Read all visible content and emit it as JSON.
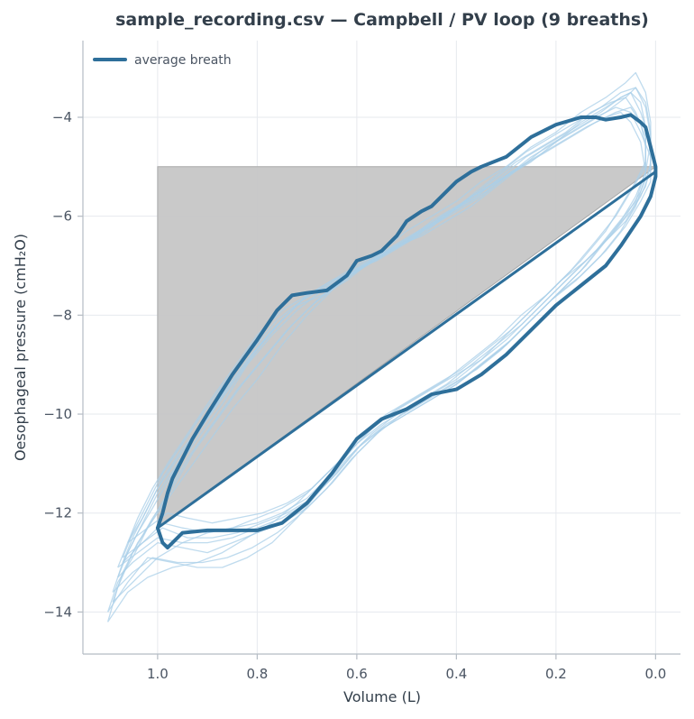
{
  "chart_data": {
    "type": "line",
    "title": "sample_recording.csv — Campbell / PV loop (9 breaths)",
    "xlabel": "Volume (L)",
    "ylabel": "Oesophageal pressure (cmH₂O)",
    "x_axis_reversed": true,
    "xlim": [
      1.15,
      -0.05
    ],
    "ylim": [
      -14.85,
      -2.45
    ],
    "x_ticks": [
      1.0,
      0.8,
      0.6,
      0.4,
      0.2,
      0.0
    ],
    "x_tick_labels": [
      "1.0",
      "0.8",
      "0.6",
      "0.4",
      "0.2",
      "0.0"
    ],
    "y_ticks": [
      -14,
      -12,
      -10,
      -8,
      -6,
      -4
    ],
    "y_tick_labels": [
      "−14",
      "−12",
      "−10",
      "−8",
      "−6",
      "−4"
    ],
    "grid": true,
    "legend": {
      "placement": "top-left",
      "entries": [
        "average breath"
      ]
    },
    "colors": {
      "average": "#2e6f9a",
      "breaths": "#a9cfe8",
      "work_area": "#c6c6c6"
    },
    "work_area_polygon": [
      [
        1.0,
        -5.0
      ],
      [
        0.0,
        -5.0
      ],
      [
        1.0,
        -12.3
      ]
    ],
    "chord": {
      "x": [
        1.0,
        0.0
      ],
      "y": [
        -12.3,
        -5.1
      ]
    },
    "series": [
      {
        "name": "average breath",
        "role": "average",
        "x": [
          1.0,
          0.99,
          0.98,
          0.97,
          0.95,
          0.93,
          0.9,
          0.85,
          0.8,
          0.76,
          0.73,
          0.7,
          0.66,
          0.62,
          0.6,
          0.57,
          0.55,
          0.52,
          0.5,
          0.47,
          0.45,
          0.42,
          0.4,
          0.37,
          0.35,
          0.3,
          0.25,
          0.2,
          0.15,
          0.12,
          0.1,
          0.07,
          0.05,
          0.03,
          0.02,
          0.01,
          0.0,
          0.0,
          0.01,
          0.03,
          0.07,
          0.1,
          0.15,
          0.2,
          0.25,
          0.3,
          0.35,
          0.4,
          0.45,
          0.5,
          0.55,
          0.6,
          0.65,
          0.7,
          0.75,
          0.8,
          0.85,
          0.9,
          0.95,
          0.98,
          0.99,
          1.0
        ],
        "y": [
          -12.3,
          -12.0,
          -11.6,
          -11.3,
          -10.9,
          -10.5,
          -10.0,
          -9.2,
          -8.5,
          -7.9,
          -7.6,
          -7.55,
          -7.5,
          -7.2,
          -6.9,
          -6.8,
          -6.7,
          -6.4,
          -6.1,
          -5.9,
          -5.8,
          -5.5,
          -5.3,
          -5.1,
          -5.0,
          -4.8,
          -4.4,
          -4.15,
          -4.0,
          -4.0,
          -4.05,
          -4.0,
          -3.95,
          -4.1,
          -4.2,
          -4.6,
          -5.0,
          -5.2,
          -5.6,
          -6.0,
          -6.6,
          -7.0,
          -7.4,
          -7.8,
          -8.3,
          -8.8,
          -9.2,
          -9.5,
          -9.6,
          -9.9,
          -10.1,
          -10.5,
          -11.2,
          -11.8,
          -12.2,
          -12.35,
          -12.35,
          -12.35,
          -12.4,
          -12.7,
          -12.6,
          -12.3
        ]
      },
      {
        "name": "",
        "role": "breath",
        "x": [
          1.09,
          1.07,
          1.04,
          1.0,
          0.95,
          0.9,
          0.85,
          0.8,
          0.75,
          0.7,
          0.65,
          0.6,
          0.55,
          0.5,
          0.45,
          0.4,
          0.35,
          0.3,
          0.25,
          0.2,
          0.15,
          0.1,
          0.07,
          0.05,
          0.03,
          0.02,
          0.02,
          0.04,
          0.07,
          0.1,
          0.15,
          0.2,
          0.25,
          0.3,
          0.35,
          0.4,
          0.45,
          0.5,
          0.55,
          0.6,
          0.65,
          0.7,
          0.75,
          0.8,
          0.85,
          0.9,
          0.95,
          1.0,
          1.05,
          1.09
        ],
        "y": [
          -13.8,
          -13.2,
          -12.6,
          -12.0,
          -11.3,
          -10.6,
          -9.9,
          -9.3,
          -8.6,
          -8.0,
          -7.5,
          -7.1,
          -6.8,
          -6.5,
          -6.1,
          -5.8,
          -5.5,
          -5.2,
          -4.8,
          -4.5,
          -4.1,
          -3.8,
          -3.6,
          -3.5,
          -3.7,
          -4.2,
          -4.9,
          -5.3,
          -5.8,
          -6.3,
          -6.9,
          -7.4,
          -7.9,
          -8.4,
          -8.9,
          -9.2,
          -9.5,
          -9.8,
          -10.1,
          -10.6,
          -11.1,
          -11.6,
          -11.9,
          -12.1,
          -12.3,
          -12.4,
          -12.6,
          -12.9,
          -13.4,
          -13.8
        ]
      },
      {
        "name": "",
        "role": "breath",
        "x": [
          1.08,
          1.06,
          1.03,
          1.0,
          0.96,
          0.92,
          0.87,
          0.82,
          0.77,
          0.72,
          0.67,
          0.62,
          0.57,
          0.52,
          0.47,
          0.42,
          0.37,
          0.32,
          0.27,
          0.22,
          0.17,
          0.12,
          0.08,
          0.05,
          0.03,
          0.01,
          0.01,
          0.03,
          0.06,
          0.1,
          0.15,
          0.2,
          0.25,
          0.3,
          0.35,
          0.4,
          0.45,
          0.5,
          0.55,
          0.6,
          0.65,
          0.7,
          0.75,
          0.8,
          0.85,
          0.9,
          0.95,
          1.0,
          1.05,
          1.08
        ],
        "y": [
          -13.3,
          -12.8,
          -12.2,
          -11.6,
          -11.0,
          -10.4,
          -9.6,
          -8.9,
          -8.3,
          -7.8,
          -7.6,
          -7.3,
          -6.9,
          -6.6,
          -6.3,
          -6.0,
          -5.6,
          -5.3,
          -5.0,
          -4.6,
          -4.3,
          -4.0,
          -3.8,
          -3.9,
          -4.3,
          -4.8,
          -5.3,
          -5.7,
          -6.2,
          -6.7,
          -7.2,
          -7.6,
          -8.1,
          -8.6,
          -9.0,
          -9.4,
          -9.7,
          -10.0,
          -10.3,
          -10.8,
          -11.4,
          -11.9,
          -12.2,
          -12.4,
          -12.6,
          -12.8,
          -12.7,
          -12.6,
          -13.0,
          -13.3
        ]
      },
      {
        "name": "",
        "role": "breath",
        "x": [
          1.1,
          1.08,
          1.05,
          1.01,
          0.97,
          0.93,
          0.88,
          0.83,
          0.78,
          0.73,
          0.68,
          0.63,
          0.58,
          0.53,
          0.48,
          0.43,
          0.38,
          0.33,
          0.28,
          0.23,
          0.18,
          0.13,
          0.09,
          0.06,
          0.04,
          0.02,
          0.02,
          0.05,
          0.08,
          0.12,
          0.17,
          0.22,
          0.27,
          0.32,
          0.37,
          0.42,
          0.47,
          0.52,
          0.57,
          0.62,
          0.67,
          0.72,
          0.77,
          0.82,
          0.87,
          0.92,
          0.97,
          1.02,
          1.06,
          1.1
        ],
        "y": [
          -14.2,
          -13.5,
          -12.8,
          -12.1,
          -11.5,
          -10.8,
          -10.1,
          -9.4,
          -8.8,
          -8.2,
          -7.7,
          -7.3,
          -7.0,
          -6.7,
          -6.4,
          -6.0,
          -5.7,
          -5.3,
          -4.9,
          -4.6,
          -4.3,
          -3.9,
          -3.7,
          -3.6,
          -3.9,
          -4.4,
          -5.0,
          -5.5,
          -6.0,
          -6.5,
          -7.1,
          -7.6,
          -8.0,
          -8.5,
          -8.9,
          -9.3,
          -9.6,
          -9.9,
          -10.3,
          -10.8,
          -11.3,
          -11.8,
          -12.2,
          -12.5,
          -12.8,
          -13.0,
          -13.1,
          -13.3,
          -13.6,
          -14.2
        ]
      },
      {
        "name": "",
        "role": "breath",
        "x": [
          1.07,
          1.05,
          1.02,
          0.99,
          0.95,
          0.91,
          0.86,
          0.81,
          0.76,
          0.71,
          0.66,
          0.61,
          0.56,
          0.51,
          0.46,
          0.41,
          0.36,
          0.31,
          0.26,
          0.21,
          0.16,
          0.11,
          0.07,
          0.04,
          0.02,
          0.01,
          0.01,
          0.03,
          0.06,
          0.1,
          0.14,
          0.19,
          0.24,
          0.29,
          0.34,
          0.39,
          0.44,
          0.49,
          0.54,
          0.59,
          0.64,
          0.69,
          0.74,
          0.79,
          0.84,
          0.89,
          0.94,
          0.99,
          1.03,
          1.07
        ],
        "y": [
          -12.9,
          -12.4,
          -11.8,
          -11.2,
          -10.6,
          -10.0,
          -9.3,
          -8.7,
          -8.1,
          -7.7,
          -7.4,
          -7.1,
          -6.8,
          -6.5,
          -6.2,
          -5.9,
          -5.5,
          -5.1,
          -4.7,
          -4.4,
          -4.1,
          -3.8,
          -3.5,
          -3.4,
          -3.8,
          -4.4,
          -5.1,
          -5.6,
          -6.1,
          -6.5,
          -7.0,
          -7.5,
          -8.0,
          -8.5,
          -8.9,
          -9.3,
          -9.6,
          -9.9,
          -10.2,
          -10.6,
          -11.2,
          -11.7,
          -12.0,
          -12.2,
          -12.4,
          -12.5,
          -12.5,
          -12.3,
          -12.6,
          -12.9
        ]
      },
      {
        "name": "",
        "role": "breath",
        "x": [
          1.09,
          1.07,
          1.04,
          1.01,
          0.97,
          0.92,
          0.87,
          0.82,
          0.77,
          0.72,
          0.67,
          0.62,
          0.57,
          0.52,
          0.47,
          0.42,
          0.37,
          0.32,
          0.27,
          0.22,
          0.17,
          0.12,
          0.08,
          0.05,
          0.03,
          0.02,
          0.02,
          0.04,
          0.07,
          0.11,
          0.16,
          0.21,
          0.26,
          0.31,
          0.36,
          0.41,
          0.46,
          0.51,
          0.56,
          0.61,
          0.66,
          0.71,
          0.76,
          0.81,
          0.86,
          0.91,
          0.96,
          1.01,
          1.05,
          1.09
        ],
        "y": [
          -13.6,
          -13.0,
          -12.4,
          -11.9,
          -11.2,
          -10.5,
          -9.8,
          -9.0,
          -8.4,
          -7.9,
          -7.5,
          -7.2,
          -6.9,
          -6.6,
          -6.4,
          -6.1,
          -5.8,
          -5.4,
          -5.0,
          -4.7,
          -4.4,
          -4.1,
          -3.9,
          -3.8,
          -4.1,
          -4.6,
          -5.2,
          -5.8,
          -6.3,
          -6.8,
          -7.3,
          -7.7,
          -8.2,
          -8.7,
          -9.1,
          -9.4,
          -9.7,
          -10.0,
          -10.4,
          -10.9,
          -11.5,
          -12.0,
          -12.4,
          -12.7,
          -12.9,
          -13.0,
          -13.0,
          -12.9,
          -13.2,
          -13.6
        ]
      },
      {
        "name": "",
        "role": "breath",
        "x": [
          1.06,
          1.04,
          1.01,
          0.98,
          0.94,
          0.9,
          0.85,
          0.8,
          0.75,
          0.7,
          0.65,
          0.6,
          0.55,
          0.5,
          0.45,
          0.4,
          0.35,
          0.3,
          0.25,
          0.2,
          0.15,
          0.1,
          0.06,
          0.04,
          0.02,
          0.01,
          0.01,
          0.02,
          0.05,
          0.09,
          0.14,
          0.19,
          0.24,
          0.29,
          0.34,
          0.39,
          0.44,
          0.49,
          0.54,
          0.59,
          0.64,
          0.69,
          0.74,
          0.79,
          0.84,
          0.89,
          0.94,
          0.98,
          1.02,
          1.06
        ],
        "y": [
          -12.6,
          -12.1,
          -11.5,
          -11.0,
          -10.4,
          -9.8,
          -9.1,
          -8.4,
          -7.9,
          -7.6,
          -7.3,
          -7.0,
          -6.7,
          -6.3,
          -6.0,
          -5.7,
          -5.3,
          -5.0,
          -4.6,
          -4.3,
          -3.9,
          -3.6,
          -3.3,
          -3.1,
          -3.5,
          -4.1,
          -4.9,
          -5.4,
          -5.9,
          -6.4,
          -6.9,
          -7.3,
          -7.8,
          -8.3,
          -8.7,
          -9.1,
          -9.4,
          -9.7,
          -10.0,
          -10.4,
          -11.0,
          -11.5,
          -11.8,
          -12.0,
          -12.1,
          -12.2,
          -12.1,
          -12.0,
          -12.3,
          -12.6
        ]
      },
      {
        "name": "",
        "role": "breath",
        "x": [
          1.08,
          1.06,
          1.03,
          1.0,
          0.96,
          0.91,
          0.86,
          0.81,
          0.76,
          0.71,
          0.66,
          0.61,
          0.56,
          0.51,
          0.46,
          0.41,
          0.36,
          0.31,
          0.26,
          0.21,
          0.16,
          0.11,
          0.07,
          0.05,
          0.03,
          0.01,
          0.02,
          0.04,
          0.07,
          0.11,
          0.15,
          0.2,
          0.25,
          0.3,
          0.35,
          0.4,
          0.45,
          0.5,
          0.55,
          0.6,
          0.65,
          0.7,
          0.75,
          0.8,
          0.85,
          0.9,
          0.95,
          1.0,
          1.04,
          1.08
        ],
        "y": [
          -13.1,
          -12.6,
          -12.1,
          -11.5,
          -10.9,
          -10.2,
          -9.5,
          -8.8,
          -8.2,
          -7.7,
          -7.4,
          -7.1,
          -6.9,
          -6.6,
          -6.3,
          -5.9,
          -5.6,
          -5.2,
          -4.8,
          -4.5,
          -4.2,
          -3.9,
          -3.6,
          -3.5,
          -3.9,
          -4.5,
          -5.1,
          -5.6,
          -6.1,
          -6.6,
          -7.1,
          -7.6,
          -8.1,
          -8.6,
          -9.0,
          -9.4,
          -9.7,
          -10.0,
          -10.3,
          -10.7,
          -11.3,
          -11.8,
          -12.1,
          -12.3,
          -12.5,
          -12.6,
          -12.6,
          -12.5,
          -12.8,
          -13.1
        ]
      },
      {
        "name": "",
        "role": "breath",
        "x": [
          1.1,
          1.08,
          1.05,
          1.02,
          0.98,
          0.94,
          0.89,
          0.84,
          0.79,
          0.74,
          0.69,
          0.64,
          0.59,
          0.54,
          0.49,
          0.44,
          0.39,
          0.34,
          0.29,
          0.24,
          0.19,
          0.14,
          0.1,
          0.07,
          0.05,
          0.03,
          0.02,
          0.04,
          0.08,
          0.12,
          0.17,
          0.22,
          0.27,
          0.32,
          0.37,
          0.42,
          0.47,
          0.52,
          0.57,
          0.62,
          0.67,
          0.72,
          0.77,
          0.82,
          0.87,
          0.92,
          0.97,
          1.02,
          1.06,
          1.1
        ],
        "y": [
          -14.0,
          -13.4,
          -12.9,
          -12.3,
          -11.6,
          -10.9,
          -10.2,
          -9.5,
          -8.9,
          -8.3,
          -7.8,
          -7.4,
          -7.0,
          -6.7,
          -6.4,
          -6.1,
          -5.8,
          -5.5,
          -5.1,
          -4.8,
          -4.5,
          -4.2,
          -4.0,
          -3.9,
          -4.1,
          -4.5,
          -5.1,
          -5.7,
          -6.2,
          -6.7,
          -7.2,
          -7.7,
          -8.2,
          -8.6,
          -9.0,
          -9.4,
          -9.7,
          -10.0,
          -10.4,
          -10.9,
          -11.5,
          -12.1,
          -12.6,
          -12.9,
          -13.1,
          -13.1,
          -13.0,
          -12.9,
          -13.4,
          -14.0
        ]
      },
      {
        "name": "",
        "role": "breath",
        "x": [
          1.07,
          1.05,
          1.02,
          0.99,
          0.95,
          0.9,
          0.85,
          0.8,
          0.75,
          0.7,
          0.65,
          0.6,
          0.55,
          0.5,
          0.45,
          0.4,
          0.35,
          0.3,
          0.25,
          0.2,
          0.15,
          0.1,
          0.06,
          0.04,
          0.02,
          0.01,
          0.01,
          0.03,
          0.06,
          0.1,
          0.15,
          0.2,
          0.25,
          0.3,
          0.35,
          0.4,
          0.45,
          0.5,
          0.55,
          0.6,
          0.65,
          0.7,
          0.75,
          0.8,
          0.85,
          0.9,
          0.95,
          0.99,
          1.03,
          1.07
        ],
        "y": [
          -13.0,
          -12.5,
          -11.9,
          -11.3,
          -10.7,
          -10.1,
          -9.4,
          -8.7,
          -8.1,
          -7.6,
          -7.3,
          -7.1,
          -6.8,
          -6.5,
          -6.2,
          -5.9,
          -5.6,
          -5.2,
          -4.9,
          -4.5,
          -4.2,
          -3.9,
          -3.6,
          -3.4,
          -3.7,
          -4.3,
          -5.0,
          -5.5,
          -6.0,
          -6.5,
          -7.0,
          -7.5,
          -8.0,
          -8.5,
          -8.9,
          -9.3,
          -9.6,
          -9.9,
          -10.2,
          -10.6,
          -11.2,
          -11.7,
          -12.0,
          -12.2,
          -12.3,
          -12.4,
          -12.3,
          -12.2,
          -12.6,
          -13.0
        ]
      }
    ]
  }
}
